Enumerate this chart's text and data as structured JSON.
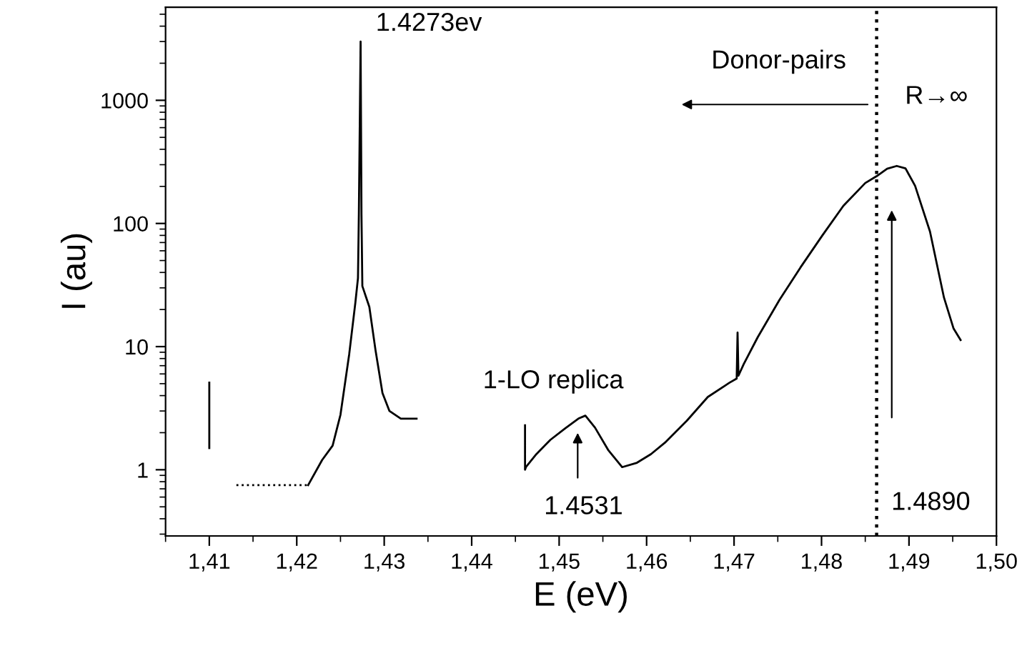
{
  "chart_data": {
    "type": "line",
    "xlabel": "E (eV)",
    "ylabel": "I (au)",
    "log": "y",
    "grid": false,
    "legend": false,
    "marker": "none",
    "xlim": [
      1.405,
      1.5
    ],
    "ylim": [
      0.29,
      5700
    ],
    "xticks": [
      {
        "value": 1.41,
        "label": "1,41"
      },
      {
        "value": 1.42,
        "label": "1,42"
      },
      {
        "value": 1.43,
        "label": "1,43"
      },
      {
        "value": 1.44,
        "label": "1,44"
      },
      {
        "value": 1.45,
        "label": "1,45"
      },
      {
        "value": 1.46,
        "label": "1,46"
      },
      {
        "value": 1.47,
        "label": "1,47"
      },
      {
        "value": 1.48,
        "label": "1,48"
      },
      {
        "value": 1.49,
        "label": "1,49"
      },
      {
        "value": 1.5,
        "label": "1,50"
      }
    ],
    "yticks": [
      1,
      10,
      100,
      1000
    ],
    "series": [
      {
        "color": "#000000",
        "line_style": "solid",
        "x": [
          1.41,
          1.41
        ],
        "values": [
          5.1,
          1.5
        ]
      },
      {
        "color": "#000000",
        "line_style": "dotted",
        "x": [
          1.4131,
          1.4213
        ],
        "values": [
          0.75,
          0.75
        ]
      },
      {
        "color": "#000000",
        "line_style": "solid",
        "x": [
          1.4213,
          1.4229,
          1.4241,
          1.425,
          1.426,
          1.4267,
          1.427,
          1.4271,
          1.4273,
          1.4274,
          1.4275,
          1.4283,
          1.429,
          1.4298,
          1.4306,
          1.4319,
          1.4337
        ],
        "values": [
          0.75,
          1.2,
          1.57,
          2.8,
          8.7,
          22.7,
          36,
          118,
          3000,
          118,
          31,
          21,
          9.4,
          4.2,
          3.0,
          2.6,
          2.6
        ]
      },
      {
        "color": "#000000",
        "line_style": "solid",
        "x": [
          1.4461,
          1.4461,
          1.4462,
          1.4474,
          1.449,
          1.4507,
          1.4522,
          1.453,
          1.4541,
          1.4556,
          1.4572,
          1.4589,
          1.4605,
          1.4621,
          1.4646,
          1.467,
          1.4695,
          1.4703,
          1.4704,
          1.4705,
          1.4711,
          1.4727,
          1.4752,
          1.4776,
          1.4801,
          1.4825,
          1.485,
          1.4863,
          1.4875,
          1.4886,
          1.4896,
          1.4907,
          1.4924,
          1.494,
          1.4951,
          1.4959
        ],
        "values": [
          2.3,
          1.0,
          1.05,
          1.34,
          1.75,
          2.17,
          2.6,
          2.75,
          2.2,
          1.45,
          1.05,
          1.14,
          1.34,
          1.66,
          2.5,
          3.9,
          5.1,
          5.5,
          13,
          5.8,
          7.2,
          11.9,
          24,
          44,
          80,
          139,
          213,
          242,
          278,
          293,
          280,
          202,
          86,
          25,
          14,
          11.3
        ]
      }
    ],
    "ref_lines": [
      {
        "axis": "x",
        "value": 1.4863,
        "color": "#000000",
        "line_style": "dotted"
      }
    ],
    "annotations": [
      "1.4273ev",
      "Donor-pairs",
      "R→∞",
      "1-LO replica",
      "1.4531",
      "1.4890"
    ]
  }
}
